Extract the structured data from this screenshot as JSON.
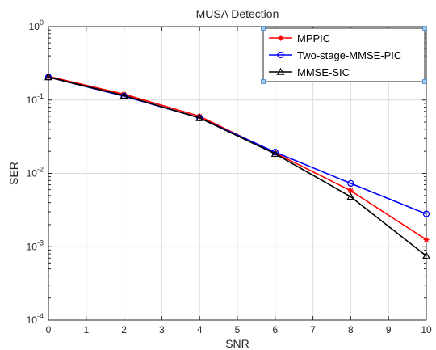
{
  "chart_data": {
    "type": "line",
    "title": "MUSA Detection",
    "xlabel": "SNR",
    "ylabel": "SER",
    "xlim": [
      0,
      10
    ],
    "xticks": [
      0,
      1,
      2,
      3,
      4,
      5,
      6,
      7,
      8,
      9,
      10
    ],
    "yscale": "log",
    "ylim": [
      0.0001,
      1
    ],
    "yticks": [
      {
        "value": 0.0001,
        "base": "10",
        "exp": "-4"
      },
      {
        "value": 0.001,
        "base": "10",
        "exp": "-3"
      },
      {
        "value": 0.01,
        "base": "10",
        "exp": "-2"
      },
      {
        "value": 0.1,
        "base": "10",
        "exp": "-1"
      },
      {
        "value": 1,
        "base": "10",
        "exp": "0"
      }
    ],
    "grid": true,
    "legend_position": "top-right",
    "x": [
      0,
      2,
      4,
      6,
      8,
      10
    ],
    "series": [
      {
        "name": "MPPIC",
        "color": "#ff0000",
        "marker": "star",
        "values": [
          0.21,
          0.12,
          0.06,
          0.019,
          0.0058,
          0.00125
        ]
      },
      {
        "name": "Two-stage-MMSE-PIC",
        "color": "#0000ff",
        "marker": "circle",
        "values": [
          0.205,
          0.113,
          0.057,
          0.0195,
          0.0073,
          0.0028
        ]
      },
      {
        "name": "MMSE-SIC",
        "color": "#000000",
        "marker": "triangle",
        "values": [
          0.205,
          0.115,
          0.057,
          0.0185,
          0.0048,
          0.00075
        ]
      }
    ]
  }
}
